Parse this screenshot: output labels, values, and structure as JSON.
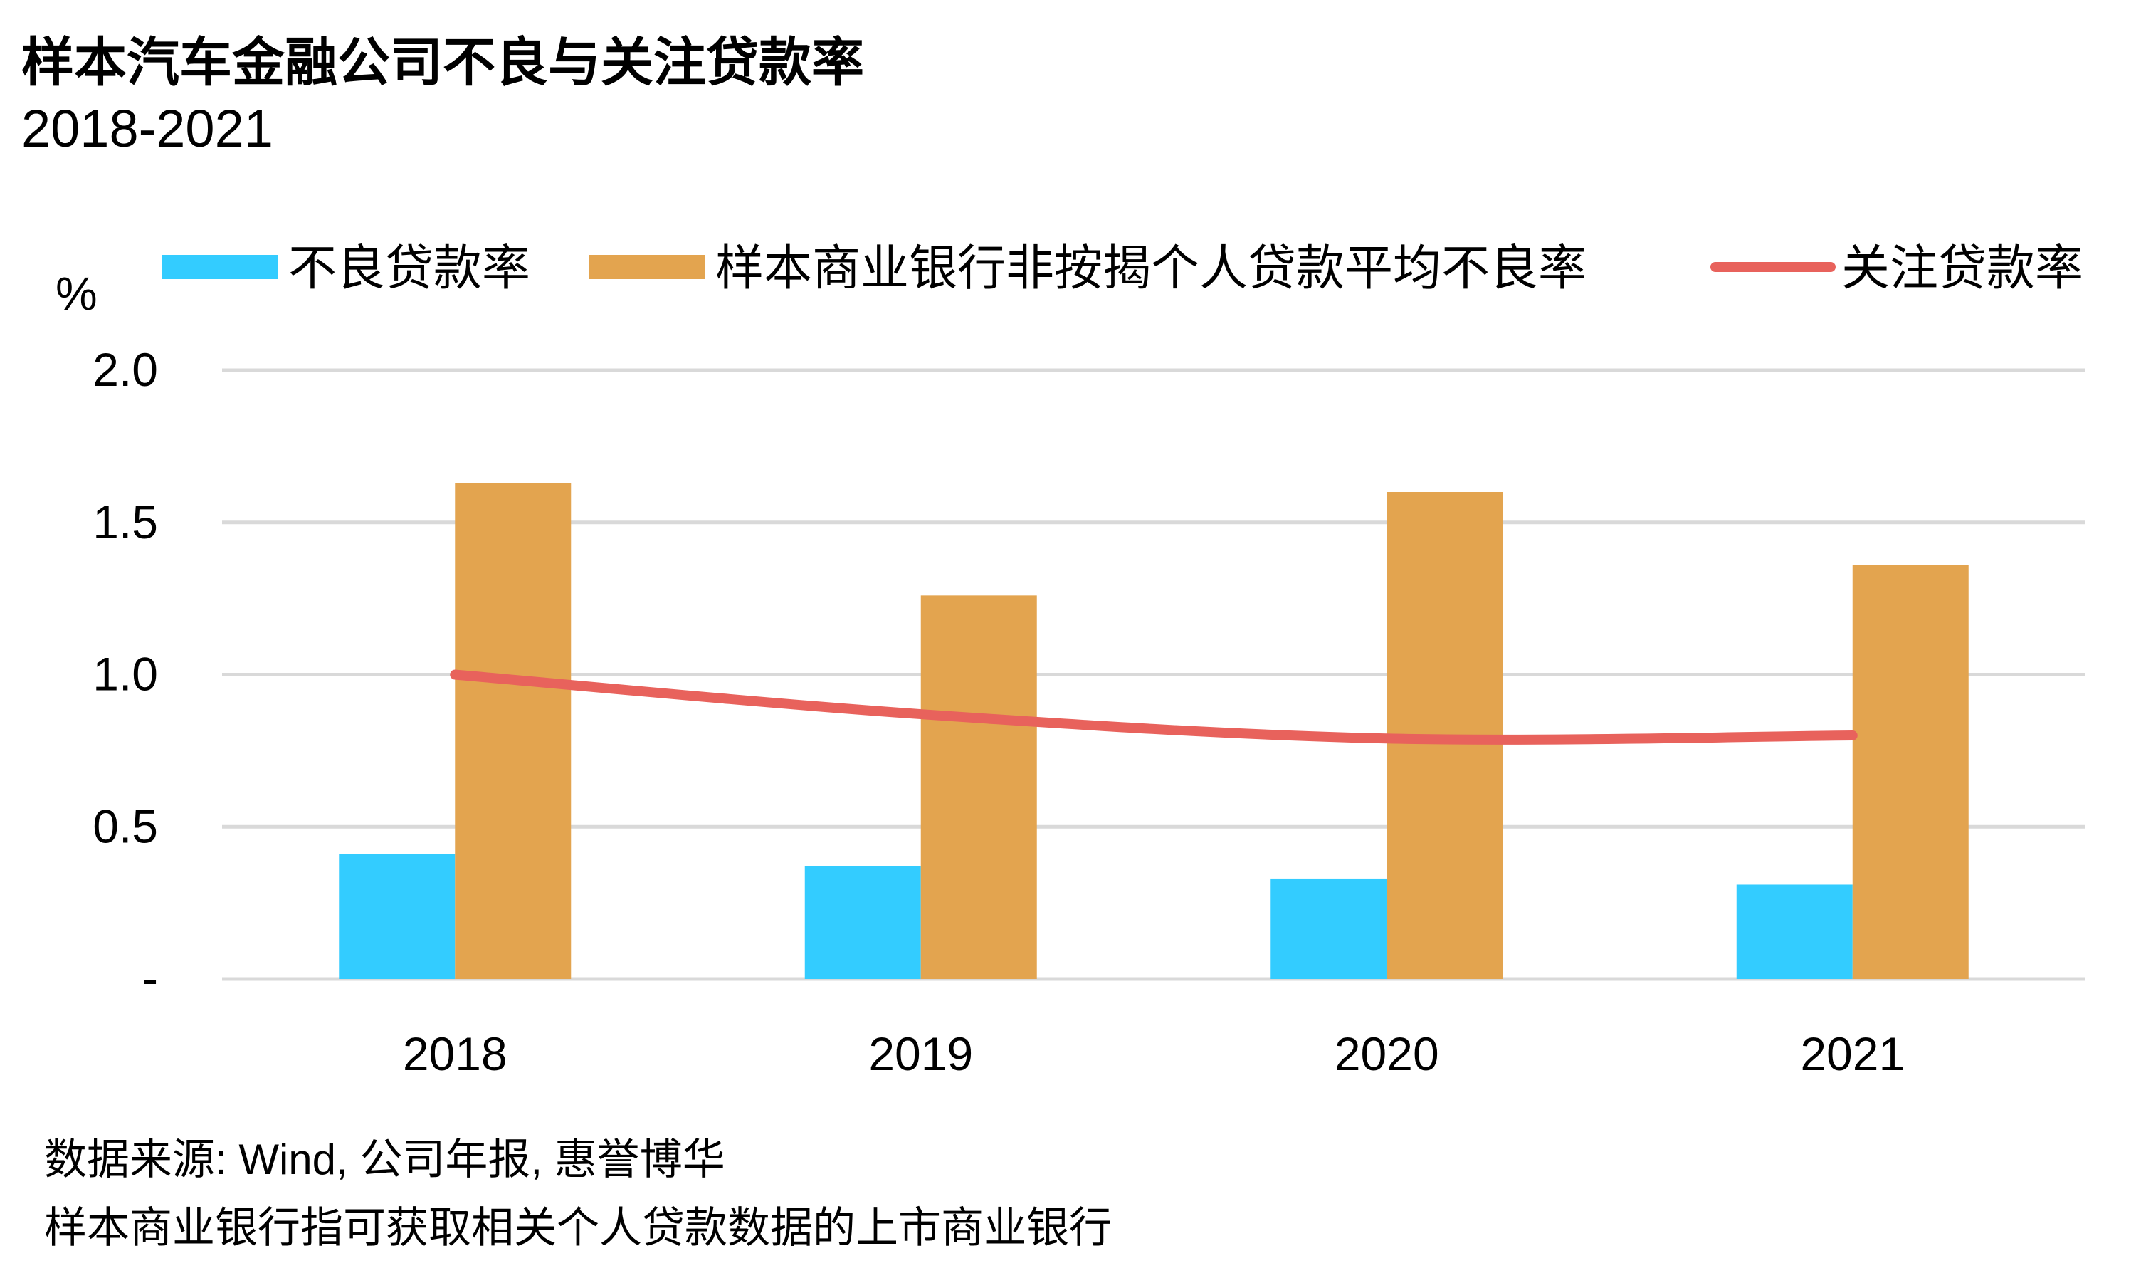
{
  "title": "样本汽车金融公司不良与关注贷款率",
  "subtitle": "2018-2021",
  "unit_label": "%",
  "legend": [
    "不良贷款率",
    "样本商业银行非按揭个人贷款平均不良率",
    "关注贷款率"
  ],
  "footer": {
    "source": "数据来源: Wind, 公司年报, 惠誉博华",
    "note": "样本商业银行指可获取相关个人贷款数据的上市商业银行"
  },
  "chart_data": {
    "type": "bar",
    "categories": [
      "2018",
      "2019",
      "2020",
      "2021"
    ],
    "series": [
      {
        "name": "不良贷款率",
        "kind": "bar",
        "color": "#33ccff",
        "values": [
          0.41,
          0.37,
          0.33,
          0.31
        ]
      },
      {
        "name": "样本商业银行非按揭个人贷款平均不良率",
        "kind": "bar",
        "color": "#e3a44f",
        "values": [
          1.63,
          1.26,
          1.6,
          1.36
        ]
      },
      {
        "name": "关注贷款率",
        "kind": "line",
        "color": "#e8625c",
        "values": [
          1.0,
          0.87,
          0.79,
          0.8
        ]
      }
    ],
    "ylim": [
      0,
      2.0
    ],
    "yticks": [
      {
        "value": 0,
        "label": "-"
      },
      {
        "value": 0.5,
        "label": "0.5"
      },
      {
        "value": 1.0,
        "label": "1.0"
      },
      {
        "value": 1.5,
        "label": "1.5"
      },
      {
        "value": 2.0,
        "label": "2.0"
      }
    ],
    "grid": true,
    "legend_position": "top"
  }
}
